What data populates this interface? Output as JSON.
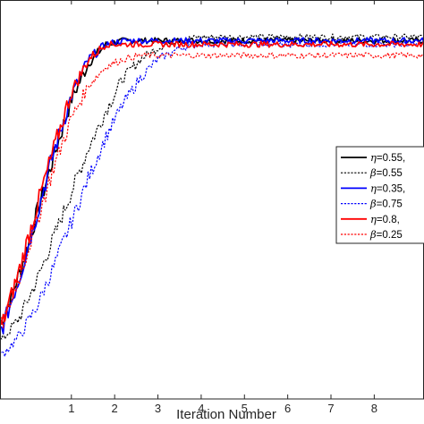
{
  "chart_data": {
    "type": "line",
    "title": "",
    "xlabel": "Iteration Number",
    "ylabel": "",
    "xlim": [
      -0.65,
      9.15
    ],
    "ylim": [
      0,
      1.08
    ],
    "xticks": [
      1,
      2,
      3,
      4,
      5,
      6,
      7,
      8
    ],
    "grid": false,
    "legend_position": "right",
    "series": [
      {
        "legend_prefix": "η",
        "legend_rest": "=0.55,",
        "color": "#000000",
        "style": "solid",
        "x": [
          -0.6,
          -0.2,
          0.2,
          0.6,
          1.0,
          1.4,
          1.8,
          2.2,
          2.6,
          3.0,
          4.0,
          5.0,
          6.0,
          7.0,
          8.0,
          9.1
        ],
        "y": [
          0.21,
          0.34,
          0.5,
          0.66,
          0.81,
          0.91,
          0.96,
          0.97,
          0.97,
          0.97,
          0.97,
          0.97,
          0.97,
          0.97,
          0.97,
          0.97
        ]
      },
      {
        "legend_prefix": "β",
        "legend_rest": "=0.55",
        "color": "#000000",
        "style": "dotted",
        "x": [
          -0.6,
          -0.2,
          0.2,
          0.6,
          1.0,
          1.4,
          1.8,
          2.2,
          2.6,
          3.0,
          3.4,
          4.0,
          5.0,
          6.0,
          7.0,
          8.0,
          9.1
        ],
        "y": [
          0.16,
          0.22,
          0.32,
          0.44,
          0.56,
          0.68,
          0.78,
          0.87,
          0.92,
          0.95,
          0.97,
          0.98,
          0.98,
          0.98,
          0.98,
          0.98,
          0.98
        ]
      },
      {
        "legend_prefix": "η",
        "legend_rest": "=0.35,",
        "color": "#0000ff",
        "style": "solid",
        "x": [
          -0.6,
          -0.2,
          0.2,
          0.6,
          1.0,
          1.4,
          1.8,
          2.2,
          2.6,
          3.0,
          4.0,
          5.0,
          6.0,
          7.0,
          8.0,
          9.1
        ],
        "y": [
          0.19,
          0.33,
          0.5,
          0.67,
          0.82,
          0.92,
          0.96,
          0.97,
          0.97,
          0.97,
          0.97,
          0.97,
          0.97,
          0.97,
          0.97,
          0.97
        ]
      },
      {
        "legend_prefix": "β",
        "legend_rest": "=0.75",
        "color": "#0000ff",
        "style": "dotted",
        "x": [
          -0.6,
          -0.2,
          0.2,
          0.6,
          1.0,
          1.4,
          1.8,
          2.2,
          2.6,
          3.0,
          3.5,
          4.0,
          5.0,
          6.0,
          7.0,
          8.0,
          9.1
        ],
        "y": [
          0.12,
          0.17,
          0.25,
          0.36,
          0.48,
          0.6,
          0.71,
          0.8,
          0.87,
          0.92,
          0.95,
          0.96,
          0.96,
          0.96,
          0.96,
          0.96,
          0.96
        ]
      },
      {
        "legend_prefix": "η",
        "legend_rest": "=0.8, ",
        "color": "#ff0000",
        "style": "solid",
        "x": [
          -0.6,
          -0.2,
          0.2,
          0.6,
          1.0,
          1.4,
          1.8,
          2.2,
          2.6,
          3.0,
          4.0,
          5.0,
          6.0,
          7.0,
          8.0,
          9.1
        ],
        "y": [
          0.2,
          0.35,
          0.52,
          0.68,
          0.83,
          0.92,
          0.96,
          0.96,
          0.96,
          0.96,
          0.96,
          0.96,
          0.96,
          0.96,
          0.96,
          0.96
        ]
      },
      {
        "legend_prefix": "β",
        "legend_rest": "=0.25",
        "color": "#ff0000",
        "style": "dotted",
        "x": [
          -0.6,
          -0.2,
          0.2,
          0.6,
          1.0,
          1.4,
          1.8,
          2.2,
          2.6,
          3.0,
          3.5,
          4.0,
          5.0,
          6.0,
          7.0,
          8.0,
          9.1
        ],
        "y": [
          0.2,
          0.33,
          0.48,
          0.63,
          0.76,
          0.85,
          0.9,
          0.92,
          0.93,
          0.93,
          0.93,
          0.93,
          0.93,
          0.93,
          0.93,
          0.93,
          0.93
        ]
      }
    ]
  }
}
